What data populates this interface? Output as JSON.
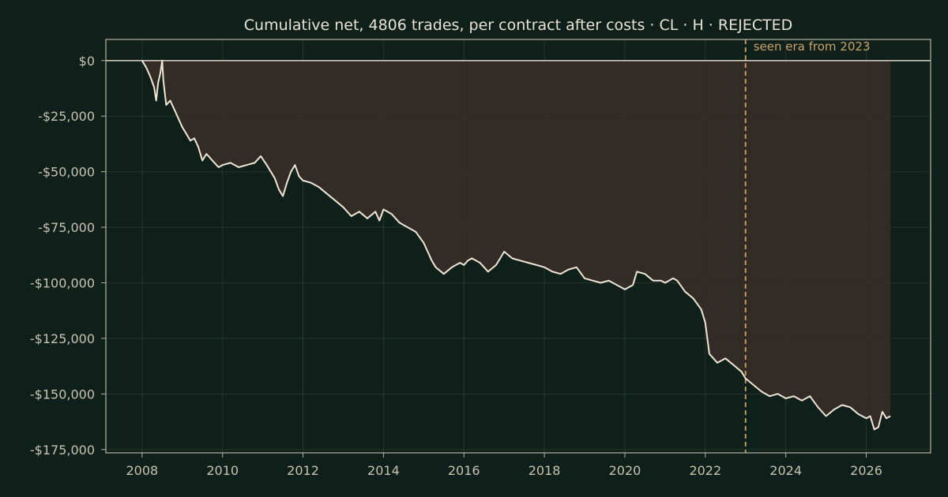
{
  "chart_data": {
    "type": "line",
    "title": "Cumulative net, 4806 trades, per contract after costs  ·  CL · H · REJECTED",
    "xlabel": "",
    "ylabel": "",
    "xlim": [
      2007.1,
      2027.6
    ],
    "ylim": [
      -176500,
      9500
    ],
    "x_ticks": [
      2008,
      2010,
      2012,
      2014,
      2016,
      2018,
      2020,
      2022,
      2024,
      2026
    ],
    "x_tick_labels": [
      "2008",
      "2010",
      "2012",
      "2014",
      "2016",
      "2018",
      "2020",
      "2022",
      "2024",
      "2026"
    ],
    "y_ticks": [
      0,
      -25000,
      -50000,
      -75000,
      -100000,
      -125000,
      -150000,
      -175000
    ],
    "y_tick_labels": [
      "$0",
      "-$25,000",
      "-$50,000",
      "-$75,000",
      "-$100,000",
      "-$125,000",
      "-$150,000",
      "-$175,000"
    ],
    "grid": true,
    "zero_line": 0,
    "seen_era": {
      "x": 2023.0,
      "label": "seen era from 2023"
    },
    "fill": "drawdown area between $0 and the equity curve",
    "series": [
      {
        "x": [
          2008.0,
          2008.1,
          2008.2,
          2008.3,
          2008.35,
          2008.4,
          2008.45,
          2008.5,
          2008.53,
          2008.6,
          2008.7,
          2008.8,
          2008.9,
          2009.0,
          2009.1,
          2009.2,
          2009.3,
          2009.4,
          2009.5,
          2009.6,
          2009.7,
          2009.8,
          2009.9,
          2010.0,
          2010.2,
          2010.4,
          2010.6,
          2010.8,
          2010.95,
          2011.1,
          2011.3,
          2011.4,
          2011.5,
          2011.6,
          2011.7,
          2011.8,
          2011.9,
          2012.0,
          2012.2,
          2012.4,
          2012.6,
          2012.8,
          2013.0,
          2013.2,
          2013.4,
          2013.6,
          2013.8,
          2013.9,
          2014.0,
          2014.2,
          2014.4,
          2014.6,
          2014.8,
          2015.0,
          2015.1,
          2015.2,
          2015.3,
          2015.5,
          2015.7,
          2015.9,
          2016.0,
          2016.1,
          2016.2,
          2016.4,
          2016.6,
          2016.8,
          2016.9,
          2017.0,
          2017.2,
          2017.4,
          2017.6,
          2017.8,
          2018.0,
          2018.2,
          2018.4,
          2018.6,
          2018.8,
          2019.0,
          2019.2,
          2019.4,
          2019.6,
          2019.8,
          2020.0,
          2020.2,
          2020.3,
          2020.5,
          2020.7,
          2020.9,
          2021.0,
          2021.2,
          2021.3,
          2021.5,
          2021.7,
          2021.9,
          2022.0,
          2022.1,
          2022.3,
          2022.5,
          2022.7,
          2022.9,
          2023.0,
          2023.2,
          2023.4,
          2023.6,
          2023.8,
          2024.0,
          2024.2,
          2024.4,
          2024.6,
          2024.8,
          2025.0,
          2025.2,
          2025.4,
          2025.6,
          2025.8,
          2026.0,
          2026.1,
          2026.2,
          2026.3,
          2026.4,
          2026.5,
          2026.6
        ],
        "values": [
          0,
          -3000,
          -7000,
          -12000,
          -18000,
          -10000,
          -6000,
          0,
          -9000,
          -20000,
          -18000,
          -22000,
          -26000,
          -30000,
          -33000,
          -36000,
          -35000,
          -39000,
          -45000,
          -42000,
          -44000,
          -46000,
          -48000,
          -47000,
          -46000,
          -48000,
          -47000,
          -46000,
          -43000,
          -47000,
          -53000,
          -58000,
          -61000,
          -55000,
          -50000,
          -47000,
          -52000,
          -54000,
          -55000,
          -57000,
          -60000,
          -63000,
          -66000,
          -70000,
          -68000,
          -71000,
          -68000,
          -72000,
          -67000,
          -69000,
          -73000,
          -75000,
          -77000,
          -82000,
          -86000,
          -90000,
          -93000,
          -96000,
          -93000,
          -91000,
          -92000,
          -90000,
          -89000,
          -91000,
          -95000,
          -92000,
          -89000,
          -86000,
          -89000,
          -90000,
          -91000,
          -92000,
          -93000,
          -95000,
          -96000,
          -94000,
          -93000,
          -98000,
          -99000,
          -100000,
          -99000,
          -101000,
          -103000,
          -101000,
          -95000,
          -96000,
          -99000,
          -99000,
          -100000,
          -98000,
          -99000,
          -104000,
          -107000,
          -112000,
          -118000,
          -132000,
          -136000,
          -134000,
          -137000,
          -140000,
          -143000,
          -146000,
          -149000,
          -151000,
          -150000,
          -152000,
          -151000,
          -153000,
          -151000,
          -156000,
          -160000,
          -157000,
          -155000,
          -156000,
          -159000,
          -161000,
          -160000,
          -166000,
          -165000,
          -158000,
          -161000,
          -160000
        ]
      }
    ]
  }
}
